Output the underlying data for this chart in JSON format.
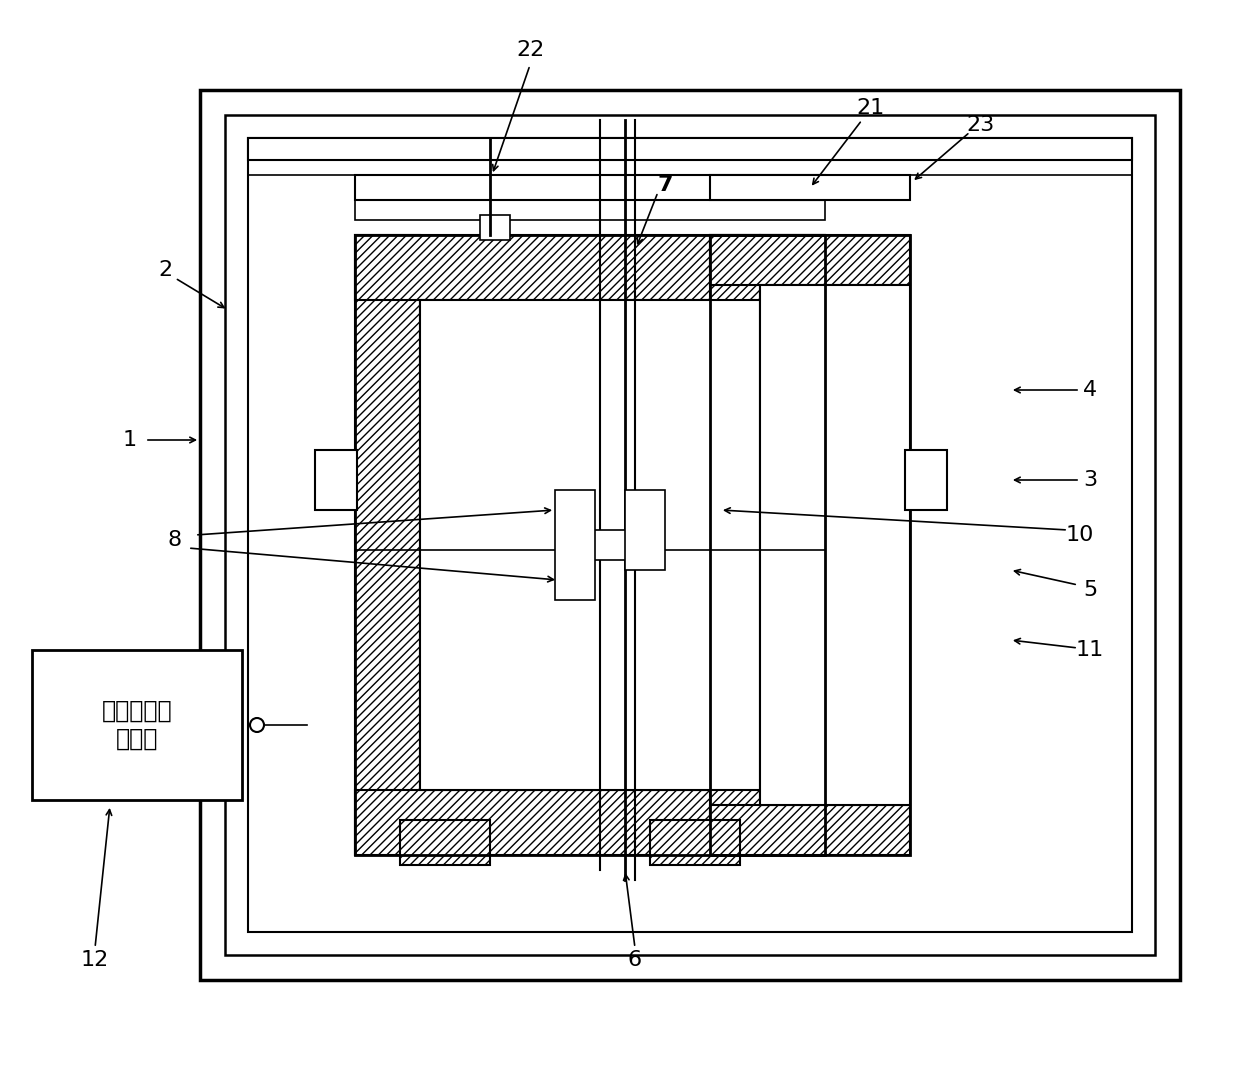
{
  "bg_color": "#ffffff",
  "lc": "#000000",
  "fig_w": 12.4,
  "fig_h": 10.74,
  "dpi": 100
}
